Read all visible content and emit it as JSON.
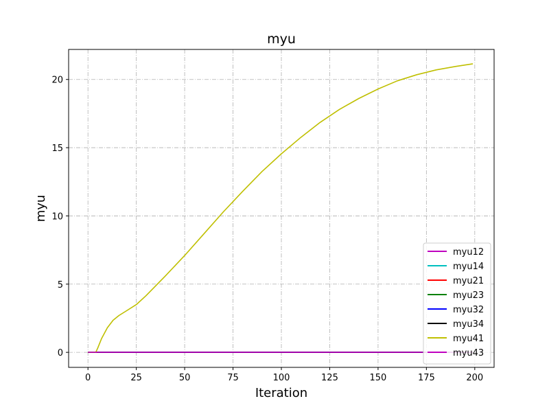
{
  "chart_data": {
    "type": "line",
    "title": "myu",
    "xlabel": "Iteration",
    "ylabel": "myu",
    "xlim": [
      -10,
      210
    ],
    "ylim": [
      -1.1,
      22.2
    ],
    "xticks": [
      0,
      25,
      50,
      75,
      100,
      125,
      150,
      175,
      200
    ],
    "yticks": [
      0,
      5,
      10,
      15,
      20
    ],
    "grid": true,
    "legend_position": "bottom-right",
    "series": [
      {
        "name": "myu12",
        "color": "#bf00bf",
        "x": [
          0,
          199
        ],
        "y": [
          0,
          0
        ]
      },
      {
        "name": "myu14",
        "color": "#00bfbf",
        "x": [
          0,
          199
        ],
        "y": [
          0,
          0
        ]
      },
      {
        "name": "myu21",
        "color": "#ff0000",
        "x": [
          0,
          199
        ],
        "y": [
          0,
          0
        ]
      },
      {
        "name": "myu23",
        "color": "#008000",
        "x": [
          0,
          199
        ],
        "y": [
          0,
          0
        ]
      },
      {
        "name": "myu32",
        "color": "#0000ff",
        "x": [
          0,
          199
        ],
        "y": [
          0,
          0
        ]
      },
      {
        "name": "myu34",
        "color": "#000000",
        "x": [
          0,
          199
        ],
        "y": [
          0,
          0
        ]
      },
      {
        "name": "myu41",
        "color": "#bfbf00",
        "x": [
          0,
          4,
          5,
          7,
          10,
          13,
          16,
          20,
          25,
          30,
          40,
          50,
          60,
          70,
          80,
          90,
          100,
          110,
          120,
          130,
          140,
          150,
          160,
          170,
          180,
          190,
          199
        ],
        "y": [
          0,
          0,
          0.3,
          1.0,
          1.8,
          2.35,
          2.7,
          3.05,
          3.5,
          4.15,
          5.6,
          7.1,
          8.7,
          10.3,
          11.8,
          13.25,
          14.55,
          15.75,
          16.85,
          17.8,
          18.6,
          19.3,
          19.9,
          20.35,
          20.7,
          20.95,
          21.15
        ]
      },
      {
        "name": "myu43",
        "color": "#bf00bf",
        "x": [
          0,
          199
        ],
        "y": [
          0,
          0
        ]
      }
    ]
  }
}
